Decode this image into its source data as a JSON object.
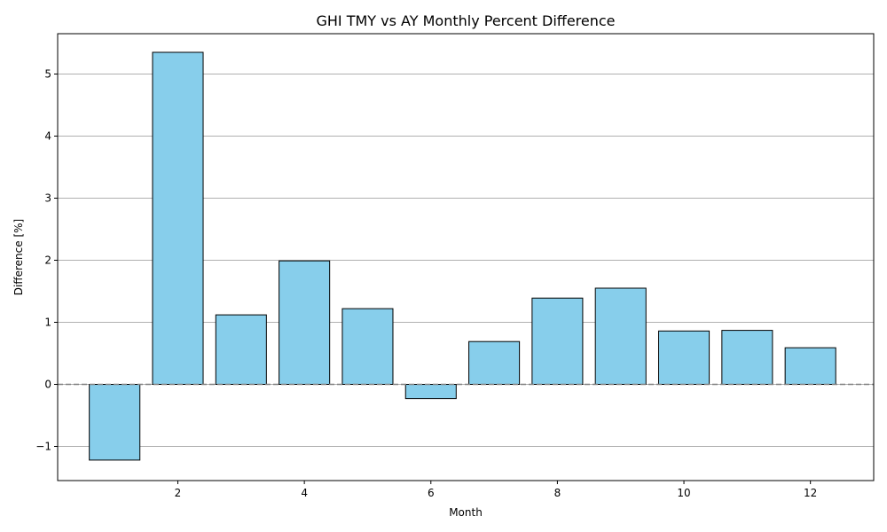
{
  "chart_data": {
    "type": "bar",
    "title": "GHI TMY vs AY Monthly Percent Difference",
    "xlabel": "Month",
    "ylabel": "Difference [%]",
    "x": [
      1,
      2,
      3,
      4,
      5,
      6,
      7,
      8,
      9,
      10,
      11,
      12
    ],
    "values": [
      -1.22,
      5.35,
      1.12,
      1.99,
      1.22,
      -0.23,
      0.69,
      1.39,
      1.55,
      0.86,
      0.87,
      0.59
    ],
    "xlim": [
      0.1,
      13.0
    ],
    "ylim": [
      -1.55,
      5.65
    ],
    "xticks": [
      2,
      4,
      6,
      8,
      10,
      12
    ],
    "yticks": [
      -1,
      0,
      1,
      2,
      3,
      4,
      5
    ],
    "ytick_labels": [
      "−1",
      "0",
      "1",
      "2",
      "3",
      "4",
      "5"
    ],
    "grid": "y",
    "reference_line": 0,
    "bar_color": "#87ceeb",
    "bar_edge_color": "#000000",
    "grid_color": "#b0b0b0",
    "reference_line_color": "#808080"
  }
}
